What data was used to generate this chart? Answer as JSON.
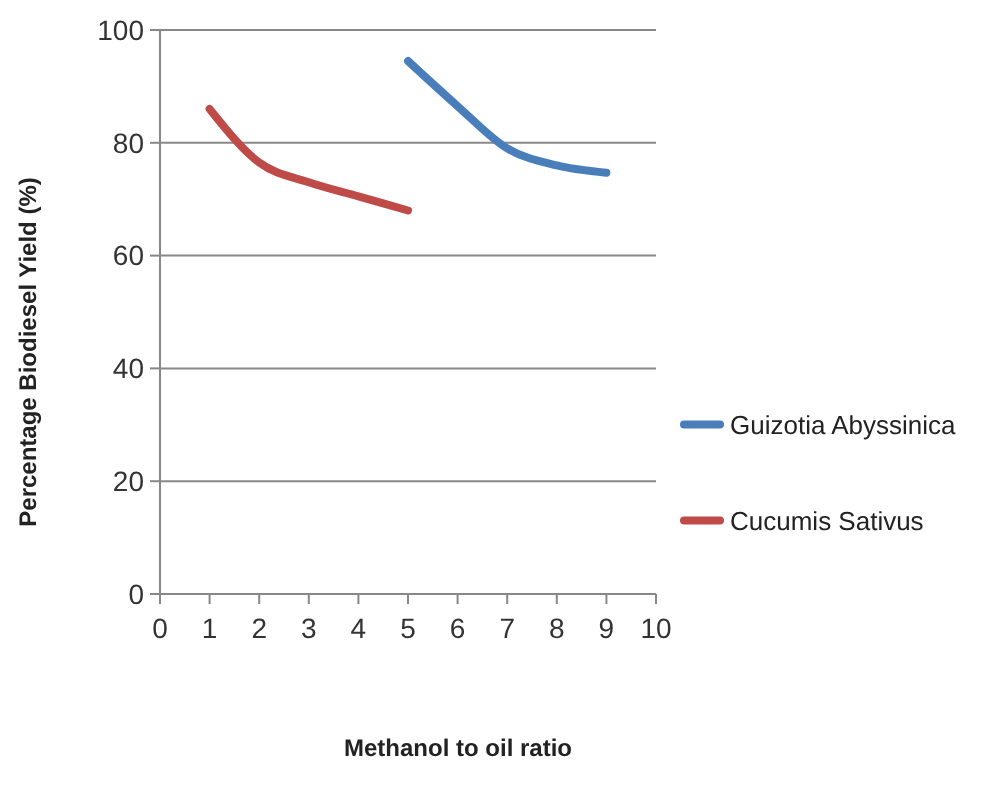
{
  "chart_data": {
    "type": "line",
    "xlabel": "Methanol to oil ratio",
    "ylabel": "Percentage Biodiesel Yield (%)",
    "xlim": [
      0,
      10
    ],
    "xticks": [
      0,
      1,
      2,
      3,
      4,
      5,
      6,
      7,
      8,
      9,
      10
    ],
    "ylim": [
      0,
      100
    ],
    "yticks": [
      0,
      20,
      40,
      60,
      80,
      100
    ],
    "grid": "y",
    "legend": "right",
    "marker": "none",
    "series": [
      {
        "name": "Guizotia Abyssinica",
        "color": "#4a7ebb",
        "x": [
          5,
          6,
          7,
          8,
          9
        ],
        "values": [
          94.5,
          86.5,
          79,
          76,
          74.7
        ]
      },
      {
        "name": "Cucumis Sativus",
        "color": "#be4b48",
        "x": [
          1,
          2,
          3,
          4,
          5
        ],
        "values": [
          86,
          76.5,
          73,
          70.5,
          68
        ]
      }
    ]
  }
}
